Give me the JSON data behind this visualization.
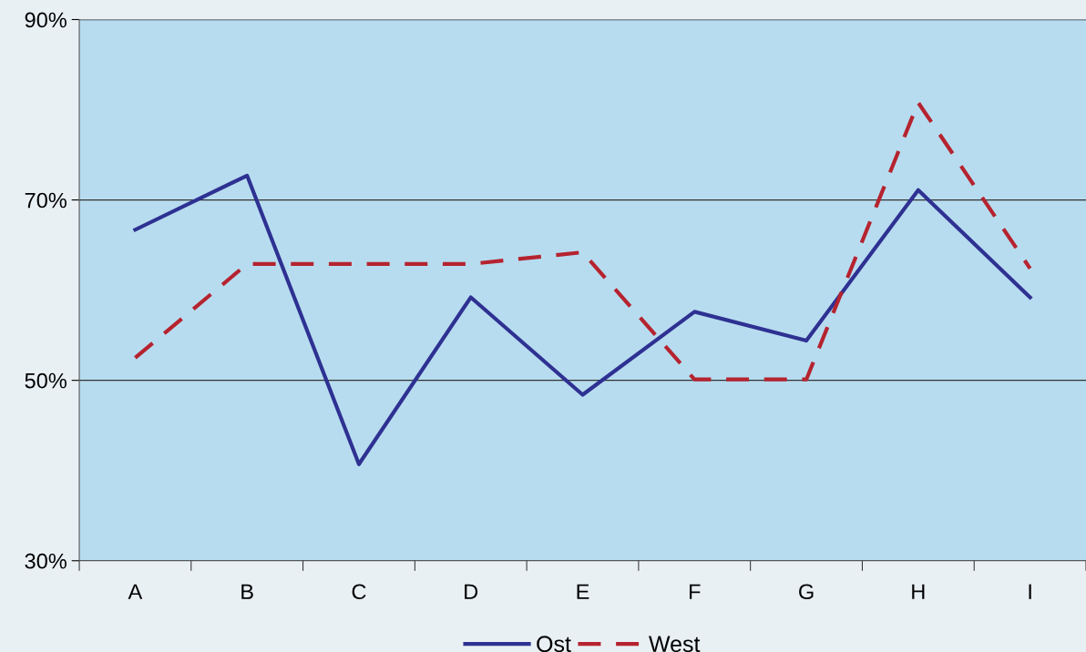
{
  "chart_data": {
    "type": "line",
    "categories": [
      "A",
      "B",
      "C",
      "D",
      "E",
      "F",
      "G",
      "H",
      "I"
    ],
    "series": [
      {
        "name": "Ost",
        "color": "#2e3192",
        "line_style": "solid",
        "values": [
          66.7,
          72.7,
          40.7,
          59.2,
          48.4,
          57.6,
          54.4,
          71.1,
          59.2
        ]
      },
      {
        "name": "West",
        "color": "#b5232f",
        "line_style": "dashed",
        "values": [
          52.5,
          62.9,
          62.9,
          62.9,
          64.2,
          50.1,
          50.1,
          80.8,
          62.4
        ]
      }
    ],
    "ylim": [
      30,
      90
    ],
    "yticks": [
      {
        "value": 30,
        "label": "30%"
      },
      {
        "value": 50,
        "label": "50%"
      },
      {
        "value": 70,
        "label": "70%"
      },
      {
        "value": 90,
        "label": "90%"
      }
    ],
    "grid": "y",
    "legend": "bottom",
    "marker": "none"
  }
}
